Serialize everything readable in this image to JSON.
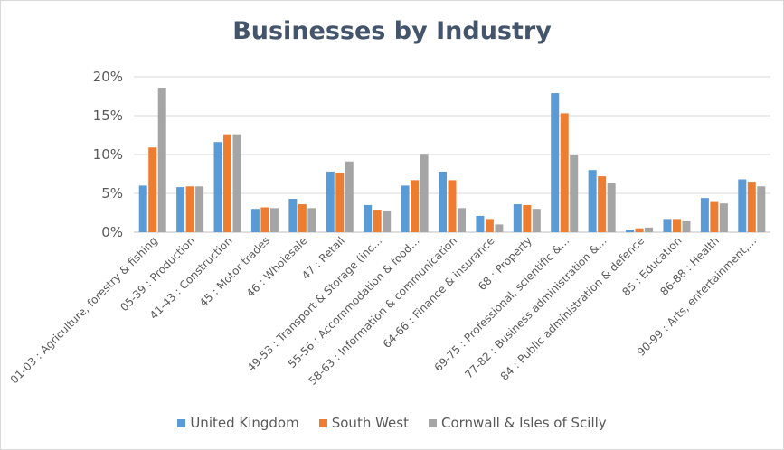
{
  "chart_data": {
    "type": "bar",
    "title": "Businesses by Industry",
    "xlabel": "",
    "ylabel": "",
    "ylim": [
      0,
      20
    ],
    "y_ticks": [
      "0%",
      "5%",
      "10%",
      "15%",
      "20%"
    ],
    "y_tick_values": [
      0,
      5,
      10,
      15,
      20
    ],
    "grid": true,
    "legend_position": "bottom",
    "categories": [
      "01-03 : Agriculture, forestry & fishing",
      "05-39 : Production",
      "41-43 : Construction",
      "45 : Motor trades",
      "46 : Wholesale",
      "47 : Retail",
      "49-53 : Transport & Storage (inc…",
      "55-56 : Accommodation & food…",
      "58-63 : Information & communication",
      "64-66 : Finance & insurance",
      "68 : Property",
      "69-75 : Professional, scientific &…",
      "77-82 : Business administration &…",
      "84 : Public administration & defence",
      "85 : Education",
      "86-88 : Health",
      "90-99 : Arts, entertainment,…"
    ],
    "series": [
      {
        "name": "United Kingdom",
        "color": "#5b9bd5",
        "values": [
          6.0,
          5.8,
          11.6,
          3.0,
          4.3,
          7.8,
          3.5,
          6.0,
          7.8,
          2.1,
          3.6,
          17.9,
          8.0,
          0.3,
          1.7,
          4.4,
          6.8
        ]
      },
      {
        "name": "South West",
        "color": "#ed7d31",
        "values": [
          10.9,
          5.9,
          12.6,
          3.2,
          3.6,
          7.6,
          2.9,
          6.7,
          6.7,
          1.7,
          3.5,
          15.3,
          7.2,
          0.5,
          1.7,
          4.0,
          6.5
        ]
      },
      {
        "name": "Cornwall & Isles of Scilly",
        "color": "#a5a5a5",
        "values": [
          18.6,
          5.9,
          12.6,
          3.1,
          3.1,
          9.1,
          2.8,
          10.1,
          3.1,
          1.0,
          3.0,
          10.0,
          6.3,
          0.6,
          1.4,
          3.7,
          5.9
        ]
      }
    ]
  }
}
